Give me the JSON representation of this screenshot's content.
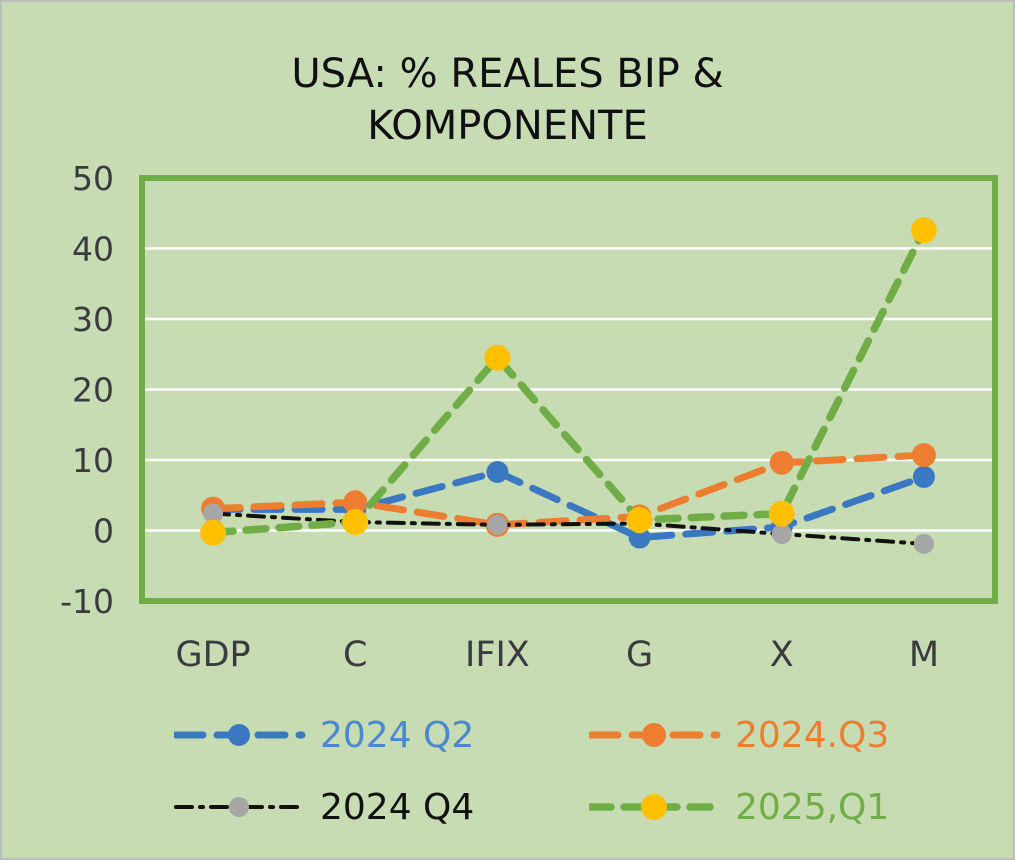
{
  "chart_data": {
    "type": "line",
    "title": "USA: % REALES BIP & KOMPONENTE",
    "categories": [
      "GDP",
      "C",
      "IFIX",
      "G",
      "X",
      "M"
    ],
    "series": [
      {
        "name": "2024 Q2",
        "values": [
          3.0,
          3.0,
          8.3,
          -1.0,
          0.5,
          7.6
        ],
        "line_color": "#3a78c2",
        "marker_color": "#3a78c2",
        "label_color": "#4a89d0",
        "dash": "27 14",
        "width": 7,
        "marker_r": 11
      },
      {
        "name": "2024.Q3",
        "values": [
          3.1,
          4.0,
          0.8,
          2.0,
          9.6,
          10.7
        ],
        "line_color": "#ed7d31",
        "marker_color": "#ed7d31",
        "label_color": "#ed7d31",
        "dash": "27 14",
        "width": 7,
        "marker_r": 12
      },
      {
        "name": "2024 Q4",
        "values": [
          2.4,
          1.2,
          0.8,
          1.0,
          -0.5,
          -1.9
        ],
        "line_color": "#111111",
        "marker_color": "#a6a6a6",
        "label_color": "#111111",
        "dash": "16 8 3 8",
        "width": 4,
        "marker_r": 10
      },
      {
        "name": "2025,Q1",
        "values": [
          -0.3,
          1.2,
          24.5,
          1.5,
          2.4,
          42.6
        ],
        "line_color": "#70ad47",
        "marker_color": "#ffc000",
        "label_color": "#70ad47",
        "dash": "20 13",
        "width": 7.5,
        "marker_r": 13
      }
    ],
    "ylim": [
      -10,
      50
    ],
    "yticks": [
      50,
      40,
      30,
      20,
      10,
      0,
      -10
    ],
    "xlabel": "",
    "ylabel": "",
    "grid": true,
    "legend_position": "bottom",
    "plot_border_color": "#70ad47",
    "gridline_color": "#ffffff",
    "background_color": "#c7dcb2",
    "axis_label_color": "#3a3a40"
  }
}
